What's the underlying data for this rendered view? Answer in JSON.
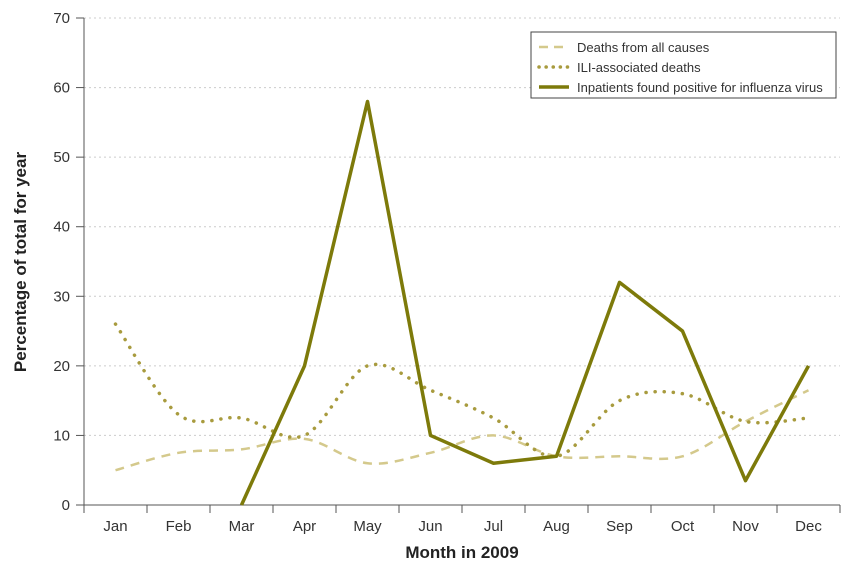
{
  "chart_data": {
    "type": "line",
    "title": "",
    "xlabel": "Month in 2009",
    "ylabel": "Percentage of total for year",
    "categories": [
      "Jan",
      "Feb",
      "Mar",
      "Apr",
      "May",
      "Jun",
      "Jul",
      "Aug",
      "Sep",
      "Oct",
      "Nov",
      "Dec"
    ],
    "ylim": [
      0,
      70
    ],
    "yticks": [
      0,
      10,
      20,
      30,
      40,
      50,
      60,
      70
    ],
    "grid": "horizontal dotted",
    "legend_position": "top-right",
    "series": [
      {
        "name": "Deaths from all causes",
        "style": "dashed",
        "color": "#d4c98c",
        "values": [
          5,
          7.5,
          8,
          9.5,
          6,
          7.5,
          10,
          7,
          7,
          7,
          12,
          16.5
        ]
      },
      {
        "name": "ILI-associated deaths",
        "style": "dotted",
        "color": "#a89b3e",
        "values": [
          26,
          13,
          12.5,
          10,
          20,
          16.5,
          12.5,
          7,
          15,
          16,
          12,
          12.5
        ]
      },
      {
        "name": "Inpatients found positive for influenza virus",
        "style": "solid",
        "color": "#7d7a0a",
        "values": [
          null,
          null,
          0,
          20,
          58,
          10,
          6,
          7,
          32,
          25,
          3.5,
          20
        ]
      }
    ]
  }
}
